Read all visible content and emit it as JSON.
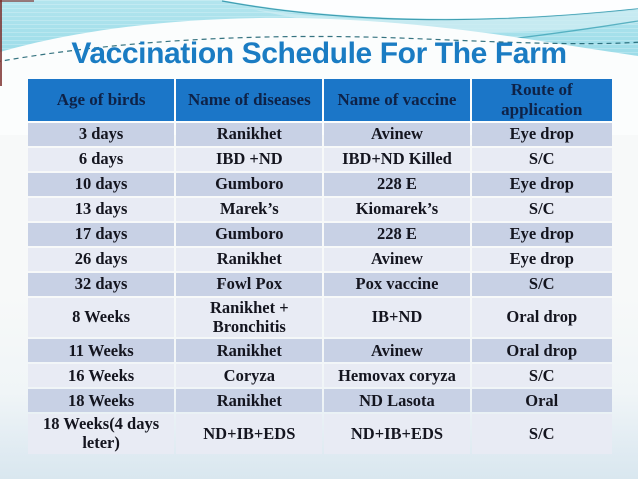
{
  "title": "Vaccination Schedule For The Farm",
  "colors": {
    "title_blue": "#1a7cc3",
    "header_bg": "#1b76c8",
    "header_text": "#0e2247",
    "row_dark": "#c8d1e5",
    "row_light": "#e8ebf4",
    "body_text": "#14151f",
    "accent_cyan": "#9fdde9",
    "wave_teal": "#2d93a8"
  },
  "table": {
    "columns": [
      "Age of  birds",
      "Name of diseases",
      "Name of vaccine",
      "Route of application"
    ],
    "rows": [
      [
        "3 days",
        "Ranikhet",
        "Avinew",
        "Eye drop"
      ],
      [
        "6 days",
        "IBD +ND",
        "IBD+ND Killed",
        "S/C"
      ],
      [
        "10 days",
        "Gumboro",
        "228 E",
        "Eye drop"
      ],
      [
        "13 days",
        "Marek’s",
        "Kiomarek’s",
        "S/C"
      ],
      [
        "17 days",
        "Gumboro",
        "228 E",
        "Eye drop"
      ],
      [
        "26 days",
        "Ranikhet",
        "Avinew",
        "Eye drop"
      ],
      [
        "32 days",
        "Fowl Pox",
        "Pox vaccine",
        "S/C"
      ],
      [
        "8 Weeks",
        "Ranikhet + Bronchitis",
        "IB+ND",
        "Oral drop"
      ],
      [
        "11 Weeks",
        "Ranikhet",
        "Avinew",
        "Oral drop"
      ],
      [
        "16 Weeks",
        "Coryza",
        "Hemovax coryza",
        "S/C"
      ],
      [
        "18 Weeks",
        "Ranikhet",
        "ND Lasota",
        "Oral"
      ],
      [
        "18 Weeks(4 days leter)",
        "ND+IB+EDS",
        "ND+IB+EDS",
        "S/C"
      ]
    ]
  }
}
